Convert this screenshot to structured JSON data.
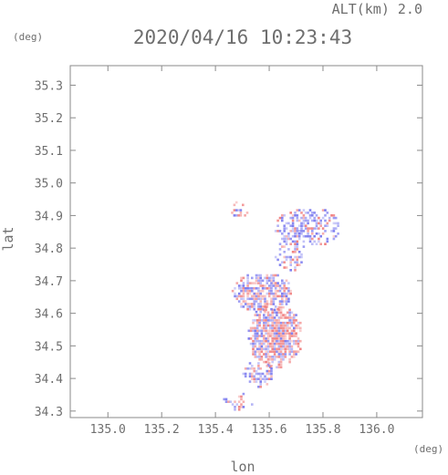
{
  "header": {
    "altitude_label": "ALT(km) 2.0",
    "datetime": "2020/04/16 10:23:43",
    "y_unit": "(deg)",
    "x_unit": "(deg)"
  },
  "colors": {
    "frame": "#8a8a8a",
    "positive": "#f08080",
    "negative": "#7b7bef",
    "text": "#6e6e6e"
  },
  "chart_data": {
    "type": "heatmap",
    "title": "2020/04/16 10:23:43",
    "xlabel": "lon",
    "ylabel": "lat",
    "xlim": [
      134.86,
      136.17
    ],
    "ylim": [
      34.28,
      35.36
    ],
    "xticks": [
      "135.0",
      "135.2",
      "135.4",
      "135.6",
      "135.8",
      "136.0"
    ],
    "xtick_values": [
      135.0,
      135.2,
      135.4,
      135.6,
      135.8,
      136.0
    ],
    "yticks": [
      "34.3",
      "34.4",
      "34.5",
      "34.6",
      "34.7",
      "34.8",
      "34.9",
      "35.0",
      "35.1",
      "35.2",
      "35.3"
    ],
    "ytick_values": [
      34.3,
      34.4,
      34.5,
      34.6,
      34.7,
      34.8,
      34.9,
      35.0,
      35.1,
      35.2,
      35.3
    ],
    "clusters": [
      {
        "lon": [
          135.52,
          135.72
        ],
        "lat": [
          34.43,
          34.62
        ],
        "sign": "mixed-red",
        "density": 0.85
      },
      {
        "lon": [
          135.46,
          135.68
        ],
        "lat": [
          34.6,
          34.72
        ],
        "sign": "mixed",
        "density": 0.75
      },
      {
        "lon": [
          135.5,
          135.62
        ],
        "lat": [
          34.37,
          34.45
        ],
        "sign": "mixed",
        "density": 0.6
      },
      {
        "lon": [
          135.62,
          135.86
        ],
        "lat": [
          34.8,
          34.92
        ],
        "sign": "mixed-blue",
        "density": 0.55
      },
      {
        "lon": [
          135.62,
          135.72
        ],
        "lat": [
          34.72,
          34.82
        ],
        "sign": "mixed-blue",
        "density": 0.45
      },
      {
        "lon": [
          135.42,
          135.54
        ],
        "lat": [
          34.3,
          34.35
        ],
        "sign": "mixed",
        "density": 0.35
      },
      {
        "lon": [
          135.45,
          135.52
        ],
        "lat": [
          34.88,
          34.94
        ],
        "sign": "mixed",
        "density": 0.4
      }
    ]
  }
}
